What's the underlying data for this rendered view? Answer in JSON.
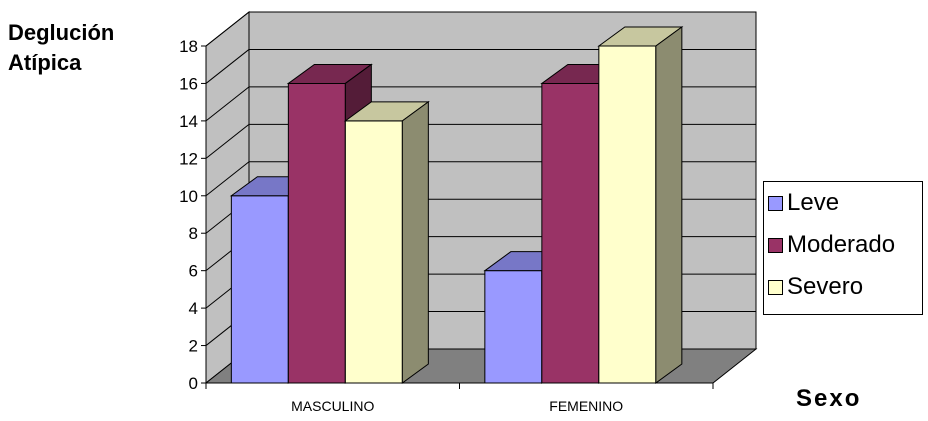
{
  "chart_data": {
    "type": "bar",
    "ylabel": "Deglución\nAtípica",
    "xlabel": "Sexo",
    "categories": [
      "MASCULINO",
      "FEMENINO"
    ],
    "series": [
      {
        "name": "Leve",
        "values": [
          10,
          6
        ],
        "color": "#9999ff"
      },
      {
        "name": "Moderado",
        "values": [
          16,
          16
        ],
        "color": "#993366"
      },
      {
        "name": "Severo",
        "values": [
          14,
          18
        ],
        "color": "#ffffcc"
      }
    ],
    "ylim": [
      0,
      18
    ],
    "yticks": [
      "0",
      "2",
      "4",
      "6",
      "8",
      "10",
      "12",
      "14",
      "16",
      "18"
    ],
    "grid": true,
    "legend_position": "right",
    "style": "3d-bar"
  }
}
